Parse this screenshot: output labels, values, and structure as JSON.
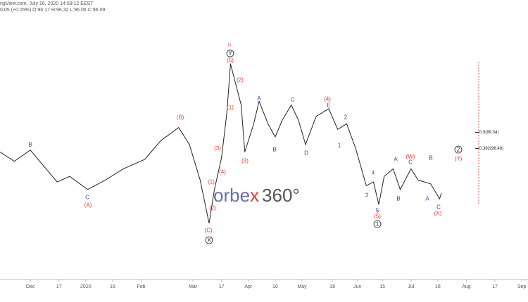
{
  "header": {
    "source": "ngView.com, July 16, 2020 14:59:12 EEST",
    "quote": "0.05 (+0.05%) O:96.17 H:96.32 L:96.06 C:96.09"
  },
  "watermark": {
    "left": "orbe",
    "accent": "x",
    "right": "360°"
  },
  "chart_data": {
    "type": "line",
    "color": "#222222",
    "x": [
      -17,
      -9,
      0,
      7,
      15,
      22,
      32,
      42,
      52,
      64,
      73,
      83,
      89,
      95,
      100,
      103,
      107,
      110,
      112,
      115,
      118,
      120,
      125,
      128,
      133,
      137,
      141,
      146,
      150,
      154,
      160,
      167,
      172,
      177,
      182,
      188,
      192,
      195,
      198,
      203,
      207,
      213,
      217,
      224,
      229,
      230
    ],
    "values": [
      98.3,
      97.8,
      98.4,
      97.6,
      96.7,
      97.0,
      96.3,
      96.8,
      97.4,
      97.9,
      98.9,
      99.6,
      98.7,
      96.8,
      94.5,
      96.3,
      98.0,
      100.4,
      103.0,
      101.9,
      100.8,
      98.3,
      99.8,
      101.0,
      99.8,
      99.1,
      100.0,
      100.8,
      100.0,
      98.7,
      100.2,
      100.6,
      99.5,
      99.8,
      98.5,
      96.5,
      96.7,
      95.5,
      97.0,
      97.4,
      96.3,
      97.4,
      96.8,
      96.6,
      95.8,
      96.1
    ],
    "xlim": [
      -17,
      278.5
    ],
    "ylim": [
      91.5,
      106.4
    ],
    "xticks": [
      {
        "value": 0,
        "label": "Dec"
      },
      {
        "value": 16,
        "label": "17"
      },
      {
        "value": 31,
        "label": "2020"
      },
      {
        "value": 46,
        "label": "16"
      },
      {
        "value": 62,
        "label": "Feb"
      },
      {
        "value": 91,
        "label": "Mar"
      },
      {
        "value": 107,
        "label": "17"
      },
      {
        "value": 122,
        "label": "Apr"
      },
      {
        "value": 137,
        "label": "16"
      },
      {
        "value": 152,
        "label": "May"
      },
      {
        "value": 169,
        "label": "18"
      },
      {
        "value": 183,
        "label": "Jun"
      },
      {
        "value": 197,
        "label": "15"
      },
      {
        "value": 213,
        "label": "Jul"
      },
      {
        "value": 228,
        "label": "16"
      },
      {
        "value": 244,
        "label": "Aug"
      },
      {
        "value": 260,
        "label": "17"
      },
      {
        "value": 275,
        "label": "Sep"
      }
    ],
    "fib_levels": [
      {
        "value": 99.34,
        "label": "0.5(99.34)"
      },
      {
        "value": 98.48,
        "label": "0.382(98.48)"
      }
    ],
    "annotations": [
      "b",
      "Y",
      "(5)",
      "(2)",
      "(1)",
      "(3)",
      "(3)",
      "(4)",
      "(1)",
      "(2)",
      "(C)",
      "X",
      "B",
      "C",
      "(A)",
      "(B)",
      "A",
      "B",
      "C",
      "D",
      "(4)",
      "E",
      "2",
      "1",
      "4",
      "3",
      "5",
      "(5)",
      "1",
      "A",
      "(W)",
      "C",
      "B",
      "B",
      "A",
      "C",
      "(X)",
      "2",
      "(Y)"
    ]
  }
}
